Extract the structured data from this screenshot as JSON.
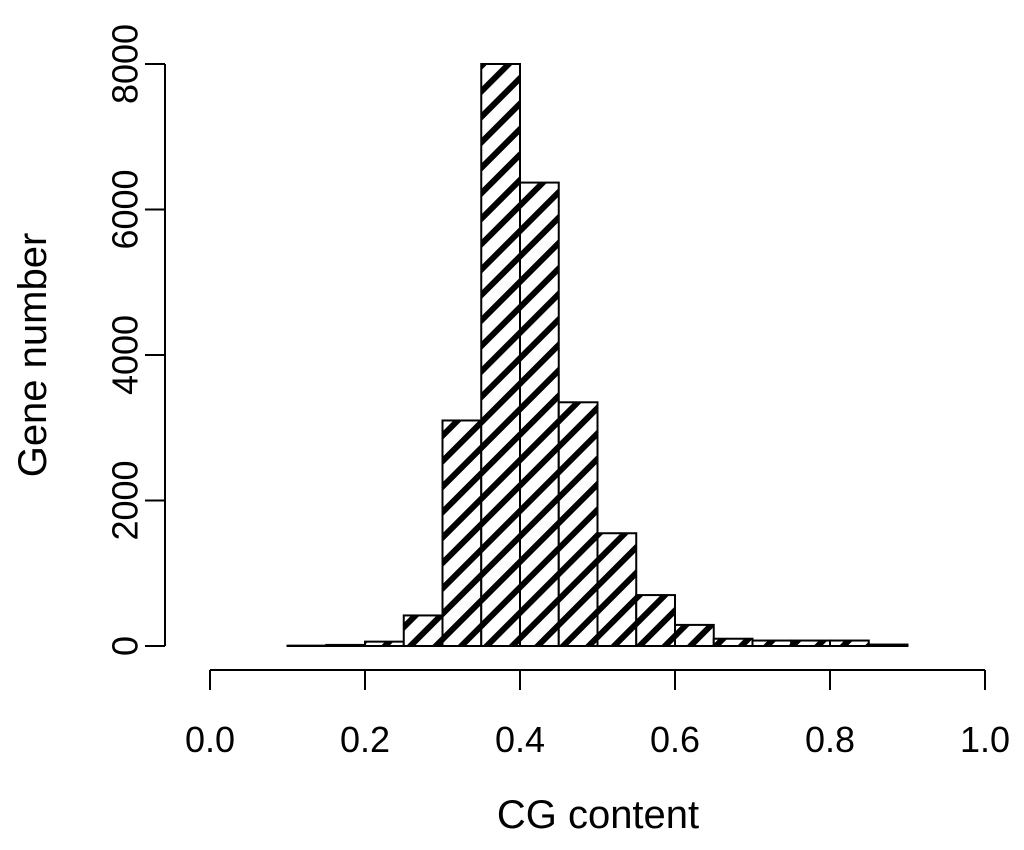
{
  "chart_data": {
    "type": "bar",
    "subtype": "histogram",
    "bin_edges": [
      0.05,
      0.1,
      0.15,
      0.2,
      0.25,
      0.3,
      0.35,
      0.4,
      0.45,
      0.5,
      0.55,
      0.6,
      0.65,
      0.7,
      0.75,
      0.8,
      0.85,
      0.9,
      0.95
    ],
    "values": [
      0,
      5,
      15,
      60,
      420,
      3100,
      8000,
      6370,
      3350,
      1550,
      700,
      290,
      100,
      75,
      75,
      75,
      20,
      0
    ],
    "xlabel": "CG content",
    "ylabel": "Gene number",
    "x_ticks": [
      "0.0",
      "0.2",
      "0.4",
      "0.6",
      "0.8",
      "1.0"
    ],
    "y_ticks": [
      "0",
      "2000",
      "4000",
      "6000",
      "8000"
    ],
    "xlim": [
      0,
      1.0
    ],
    "ylim": [
      0,
      8000
    ],
    "fill_pattern": "diagonal-hatch",
    "bar_color": "#ffffff",
    "hatch_color": "#000000",
    "grid": false,
    "legend": "none"
  }
}
